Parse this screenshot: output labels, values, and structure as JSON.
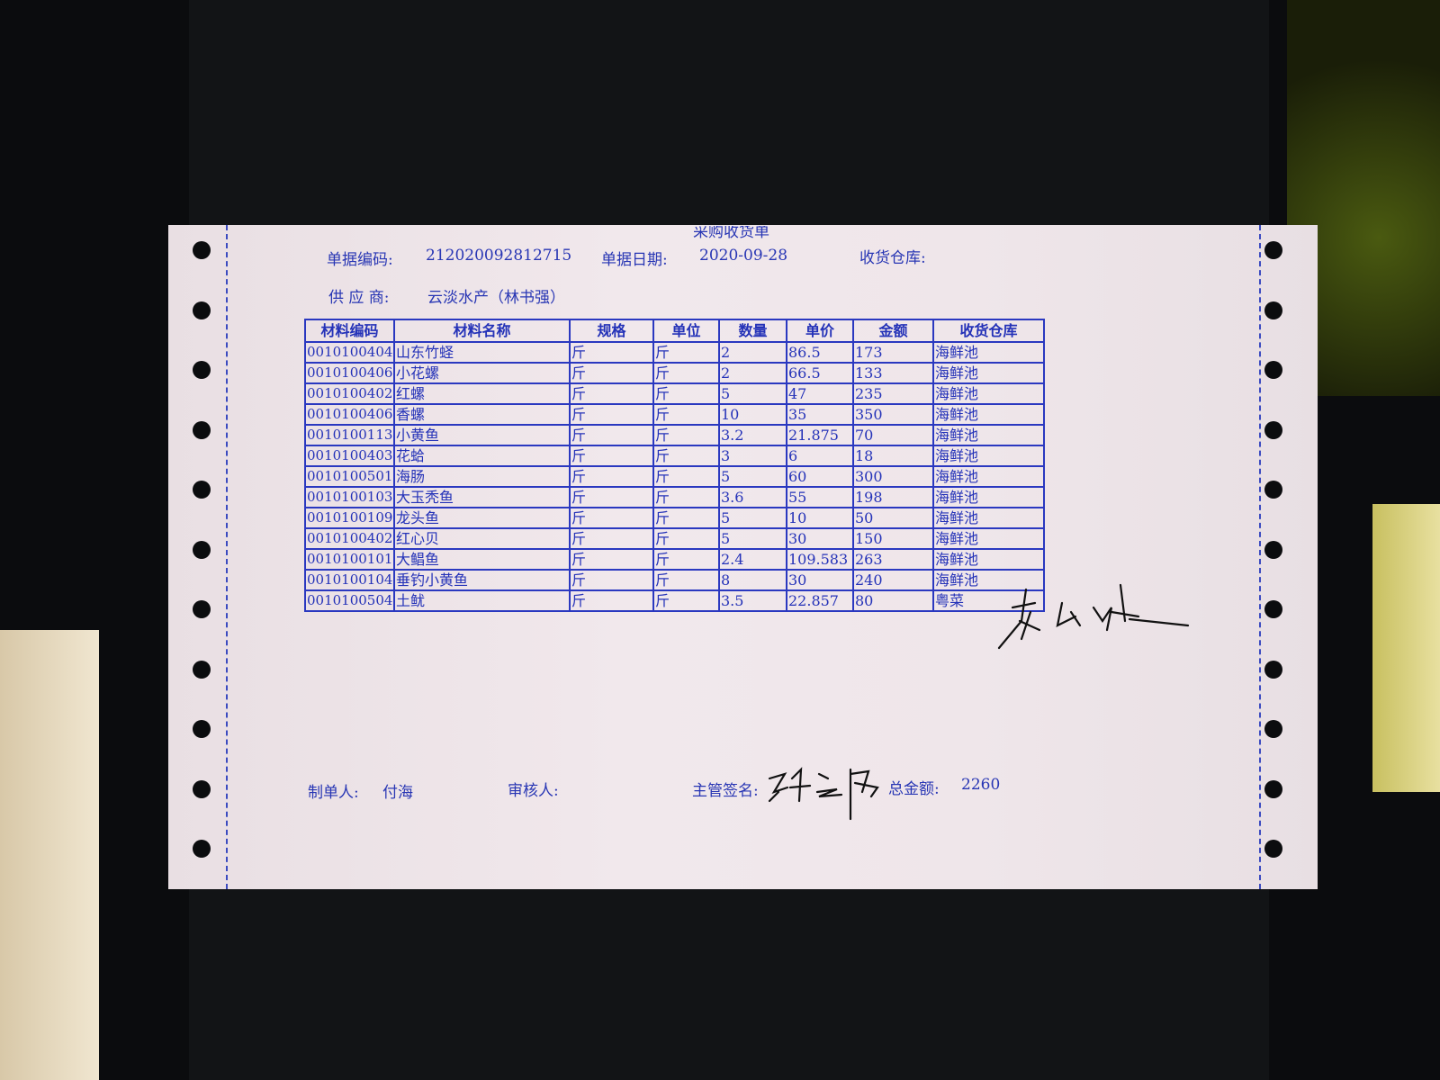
{
  "document": {
    "title": "采购收货单",
    "bill_no_label": "单据编码:",
    "bill_no": "212020092812715",
    "bill_date_label": "单据日期:",
    "bill_date": "2020-09-28",
    "warehouse_label": "收货仓库:",
    "warehouse": "",
    "supplier_label": "供 应 商:",
    "supplier": "云淡水产（林书强）"
  },
  "table": {
    "headers": [
      "材料编码",
      "材料名称",
      "规格",
      "单位",
      "数量",
      "单价",
      "金额",
      "收货仓库"
    ],
    "rows": [
      [
        "0010100404",
        "山东竹蛏",
        "斤",
        "斤",
        "2",
        "86.5",
        "173",
        "海鲜池"
      ],
      [
        "0010100406",
        "小花螺",
        "斤",
        "斤",
        "2",
        "66.5",
        "133",
        "海鲜池"
      ],
      [
        "0010100402",
        "红螺",
        "斤",
        "斤",
        "5",
        "47",
        "235",
        "海鲜池"
      ],
      [
        "0010100406",
        "香螺",
        "斤",
        "斤",
        "10",
        "35",
        "350",
        "海鲜池"
      ],
      [
        "0010100113",
        "小黄鱼",
        "斤",
        "斤",
        "3.2",
        "21.875",
        "70",
        "海鲜池"
      ],
      [
        "0010100403",
        "花蛤",
        "斤",
        "斤",
        "3",
        "6",
        "18",
        "海鲜池"
      ],
      [
        "0010100501",
        "海肠",
        "斤",
        "斤",
        "5",
        "60",
        "300",
        "海鲜池"
      ],
      [
        "0010100103",
        "大玉秃鱼",
        "斤",
        "斤",
        "3.6",
        "55",
        "198",
        "海鲜池"
      ],
      [
        "0010100109",
        "龙头鱼",
        "斤",
        "斤",
        "5",
        "10",
        "50",
        "海鲜池"
      ],
      [
        "0010100402",
        "红心贝",
        "斤",
        "斤",
        "5",
        "30",
        "150",
        "海鲜池"
      ],
      [
        "0010100101",
        "大鲳鱼",
        "斤",
        "斤",
        "2.4",
        "109.583",
        "263",
        "海鲜池"
      ],
      [
        "0010100104",
        "垂钓小黄鱼",
        "斤",
        "斤",
        "8",
        "30",
        "240",
        "海鲜池"
      ],
      [
        "0010100504",
        "土鱿",
        "斤",
        "斤",
        "3.5",
        "22.857",
        "80",
        "粤菜"
      ]
    ]
  },
  "footer": {
    "maker_label": "制单人:",
    "maker": "付海",
    "reviewer_label": "审核人:",
    "reviewer": "",
    "supervisor_label": "主管签名:",
    "total_label": "总金额:",
    "total": "2260"
  },
  "colors": {
    "ink": "#2836b4",
    "paper": "#efe6ea",
    "background": "#0b0c0e"
  }
}
